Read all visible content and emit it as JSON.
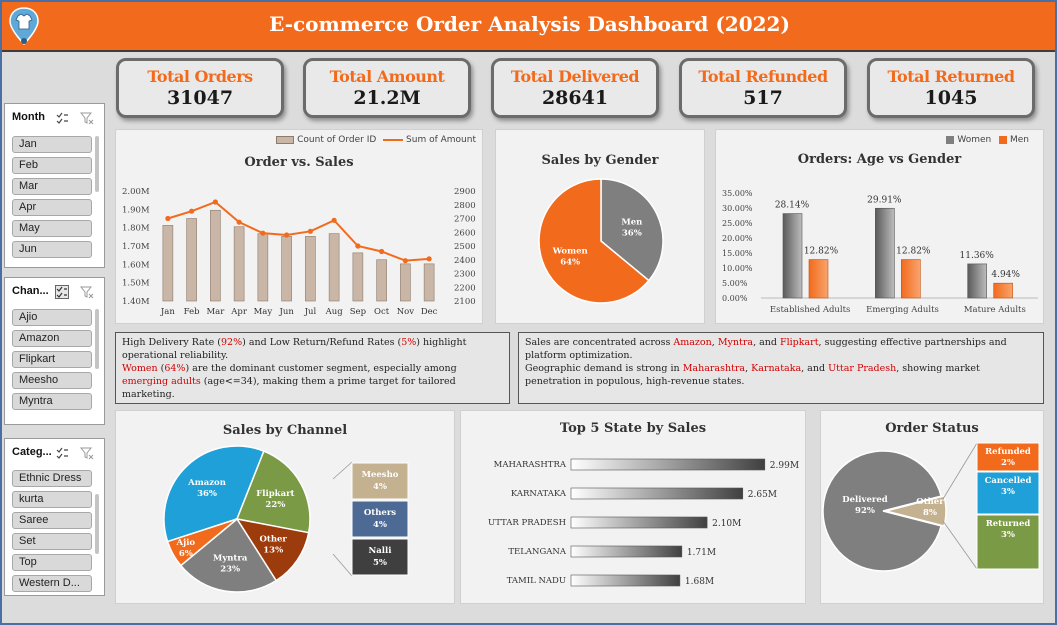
{
  "header": {
    "title": "E-commerce Order Analysis Dashboard (2022)"
  },
  "kpis": [
    {
      "label": "Total Orders",
      "value": "31047"
    },
    {
      "label": "Total Amount",
      "value": "21.2M"
    },
    {
      "label": "Total Delivered",
      "value": "28641"
    },
    {
      "label": "Total Refunded",
      "value": "517"
    },
    {
      "label": "Total Returned",
      "value": "1045"
    }
  ],
  "slicers": {
    "month": {
      "title": "Month",
      "items": [
        "Jan",
        "Feb",
        "Mar",
        "Apr",
        "May",
        "Jun"
      ]
    },
    "channel": {
      "title": "Chan...",
      "items": [
        "Ajio",
        "Amazon",
        "Flipkart",
        "Meesho",
        "Myntra"
      ]
    },
    "category": {
      "title": "Categ...",
      "items": [
        "Ethnic Dress",
        "kurta",
        "Saree",
        "Set",
        "Top",
        "Western D..."
      ]
    }
  },
  "charts": {
    "order_sales": {
      "title": "Order vs. Sales",
      "legend_bar": "Count of Order ID",
      "legend_line": "Sum of Amount"
    },
    "gender": {
      "title": "Sales by Gender"
    },
    "age_gender": {
      "title": "Orders: Age vs Gender",
      "legend": [
        "Women",
        "Men"
      ]
    },
    "channel": {
      "title": "Sales by Channel"
    },
    "states": {
      "title": "Top 5 State by Sales"
    },
    "status": {
      "title": "Order Status"
    }
  },
  "colors": {
    "orange": "#f26b1d",
    "grey": "#7f7f7f",
    "bar": "#c9b6a6",
    "green": "#7a9a45",
    "blue": "#1fa0d8",
    "brown": "#9c3b0c",
    "tan": "#c4b190",
    "slate": "#4d6a94",
    "dark": "#3f3f3f"
  },
  "chart_data": [
    {
      "type": "bar",
      "title": "Order vs. Sales",
      "categories": [
        "Jan",
        "Feb",
        "Mar",
        "Apr",
        "May",
        "Jun",
        "Jul",
        "Aug",
        "Sep",
        "Oct",
        "Nov",
        "Dec"
      ],
      "series": [
        {
          "name": "Count of Order ID",
          "axis": "right",
          "values": [
            2650,
            2700,
            2760,
            2640,
            2590,
            2570,
            2570,
            2590,
            2450,
            2400,
            2370,
            2370
          ]
        },
        {
          "name": "Sum of Amount",
          "axis": "left",
          "type": "line",
          "values": [
            1.85,
            1.89,
            1.94,
            1.83,
            1.77,
            1.76,
            1.78,
            1.84,
            1.7,
            1.67,
            1.62,
            1.63
          ]
        }
      ],
      "left_ticks": [
        "2.00M",
        "1.90M",
        "1.80M",
        "1.70M",
        "1.60M",
        "1.50M",
        "1.40M"
      ],
      "right_ticks": [
        "2900",
        "2800",
        "2700",
        "2600",
        "2500",
        "2400",
        "2300",
        "2200",
        "2100"
      ],
      "ylim_left": [
        1.4,
        2.0
      ],
      "ylim_right": [
        2100,
        2900
      ]
    },
    {
      "type": "pie",
      "title": "Sales by Gender",
      "labels": [
        "Men",
        "Women"
      ],
      "values": [
        36,
        64
      ],
      "display": [
        "36%",
        "64%"
      ]
    },
    {
      "type": "bar",
      "title": "Orders: Age vs Gender",
      "categories": [
        "Established Adults",
        "Emerging Adults",
        "Mature Adults"
      ],
      "series": [
        {
          "name": "Women",
          "values": [
            28.14,
            29.91,
            11.36
          ],
          "labels": [
            "28.14%",
            "29.91%",
            "11.36%"
          ]
        },
        {
          "name": "Men",
          "values": [
            12.82,
            12.82,
            4.94
          ],
          "labels": [
            "12.82%",
            "12.82%",
            "4.94%"
          ]
        }
      ],
      "y_ticks": [
        "35.00%",
        "30.00%",
        "25.00%",
        "20.00%",
        "15.00%",
        "10.00%",
        "5.00%",
        "0.00%"
      ],
      "ylim": [
        0,
        35
      ]
    },
    {
      "type": "pie",
      "title": "Sales by Channel",
      "labels": [
        "Amazon",
        "Flipkart",
        "Other",
        "Myntra",
        "Ajio"
      ],
      "values": [
        36,
        22,
        13,
        23,
        6
      ],
      "display": [
        "36%",
        "22%",
        "13%",
        "23%",
        "6%"
      ],
      "breakout": {
        "labels": [
          "Meesho",
          "Others",
          "Nalli"
        ],
        "display": [
          "4%",
          "4%",
          "5%"
        ]
      }
    },
    {
      "type": "bar",
      "title": "Top 5 State by Sales",
      "categories": [
        "MAHARASHTRA",
        "KARNATAKA",
        "UTTAR PRADESH",
        "TELANGANA",
        "TAMIL NADU"
      ],
      "values": [
        2.99,
        2.65,
        2.1,
        1.71,
        1.68
      ],
      "labels": [
        "2.99M",
        "2.65M",
        "2.10M",
        "1.71M",
        "1.68M"
      ]
    },
    {
      "type": "pie",
      "title": "Order Status",
      "labels": [
        "Delivered",
        "Other"
      ],
      "values": [
        92,
        8
      ],
      "display": [
        "92%",
        "8%"
      ],
      "breakout": {
        "labels": [
          "Refunded",
          "Cancelled",
          "Returned"
        ],
        "display": [
          "2%",
          "3%",
          "3%"
        ]
      }
    }
  ],
  "notes": {
    "left": {
      "p1_a": "High Delivery Rate (",
      "p1_b": "92%",
      "p1_c": ") and Low Return/Refund Rates (",
      "p1_d": "5%",
      "p1_e": ") highlight operational reliability.",
      "p2_a": "Women",
      "p2_b": " (",
      "p2_c": "64%",
      "p2_d": ") are the dominant customer segment, especially among ",
      "p2_e": "emerging adults",
      "p2_f": " (age<=34), making them a prime target for tailored marketing."
    },
    "right": {
      "p1_a": "Sales are concentrated across ",
      "p1_b": "Amazon",
      "p1_c": ", ",
      "p1_d": "Myntra",
      "p1_e": ", and ",
      "p1_f": "Flipkart",
      "p1_g": ", suggesting effective partnerships and platform optimization.",
      "p2_a": "Geographic demand is strong in ",
      "p2_b": "Maharashtra",
      "p2_c": ", ",
      "p2_d": "Karnataka",
      "p2_e": ", and ",
      "p2_f": "Uttar Pradesh",
      "p2_g": ", showing market penetration in populous, high-revenue states."
    }
  }
}
